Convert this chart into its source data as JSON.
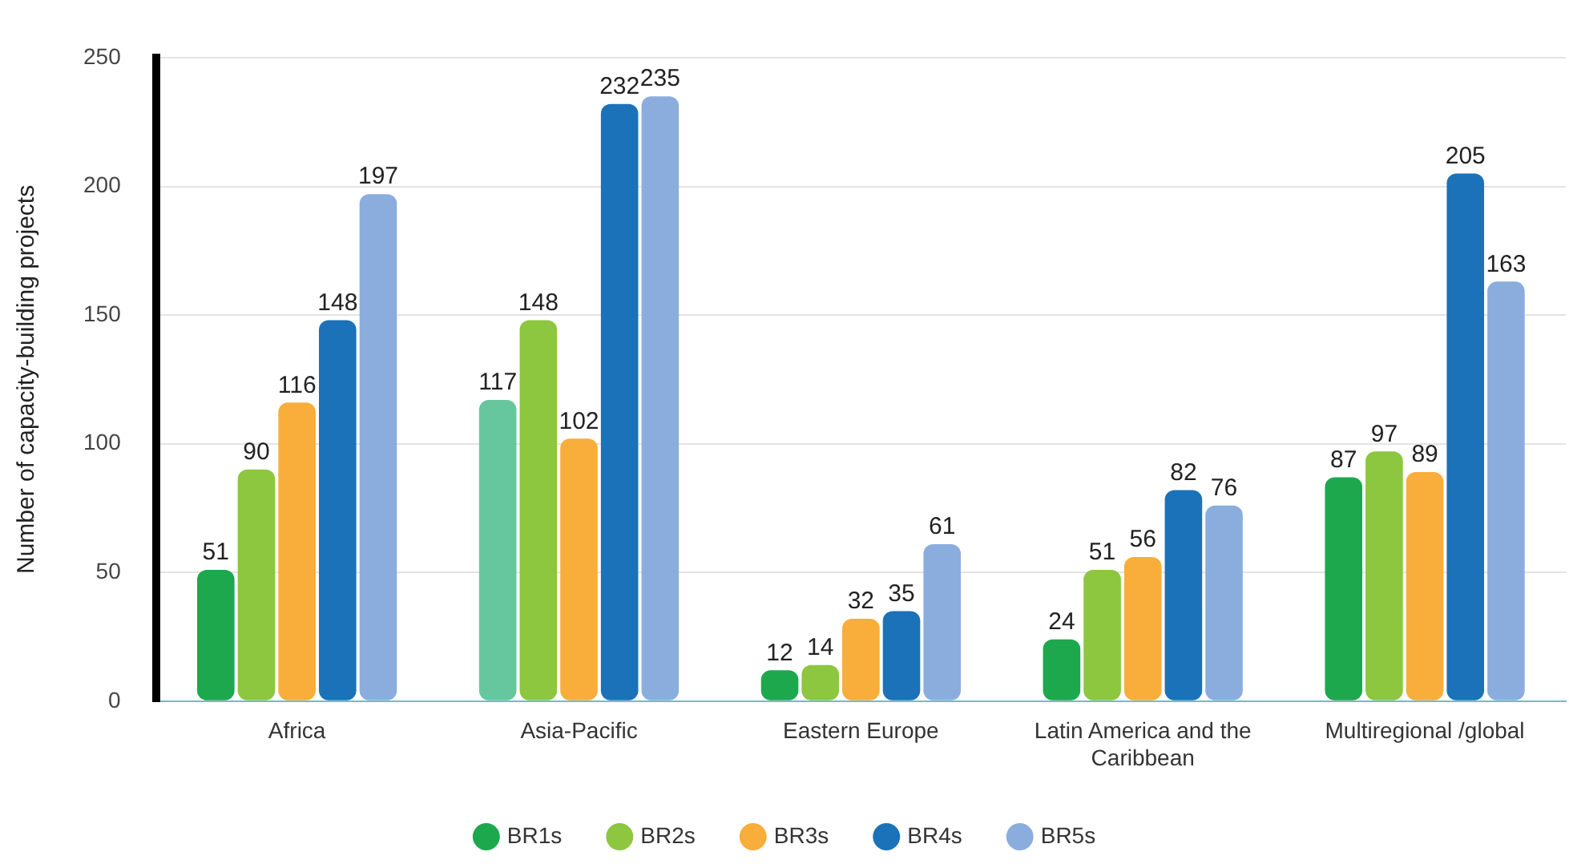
{
  "chart_data": {
    "type": "bar",
    "ylabel": "Number of capacity-building projects",
    "categories": [
      "Africa",
      "Asia-Pacific",
      "Eastern Europe",
      "Latin America and the Caribbean",
      "Multiregional /global"
    ],
    "series": [
      {
        "name": "BR1s",
        "color": "#1ea84d",
        "colors": [
          "#1ea84d",
          "#66c79e",
          "#1ea84d",
          "#1ea84d",
          "#1ea84d"
        ],
        "values": [
          51,
          117,
          12,
          24,
          87
        ]
      },
      {
        "name": "BR2s",
        "color": "#8dc63f",
        "values": [
          90,
          148,
          14,
          51,
          97
        ]
      },
      {
        "name": "BR3s",
        "color": "#f9ad3a",
        "values": [
          116,
          102,
          32,
          56,
          89
        ]
      },
      {
        "name": "BR4s",
        "color": "#1b72b8",
        "values": [
          148,
          232,
          35,
          82,
          205
        ]
      },
      {
        "name": "BR5s",
        "color": "#8badde",
        "values": [
          197,
          235,
          61,
          76,
          163
        ]
      }
    ],
    "ylim": [
      0,
      250
    ],
    "yticks": [
      0,
      50,
      100,
      150,
      200,
      250
    ],
    "grid": "y",
    "legend": "bottom",
    "data_labels": true
  }
}
